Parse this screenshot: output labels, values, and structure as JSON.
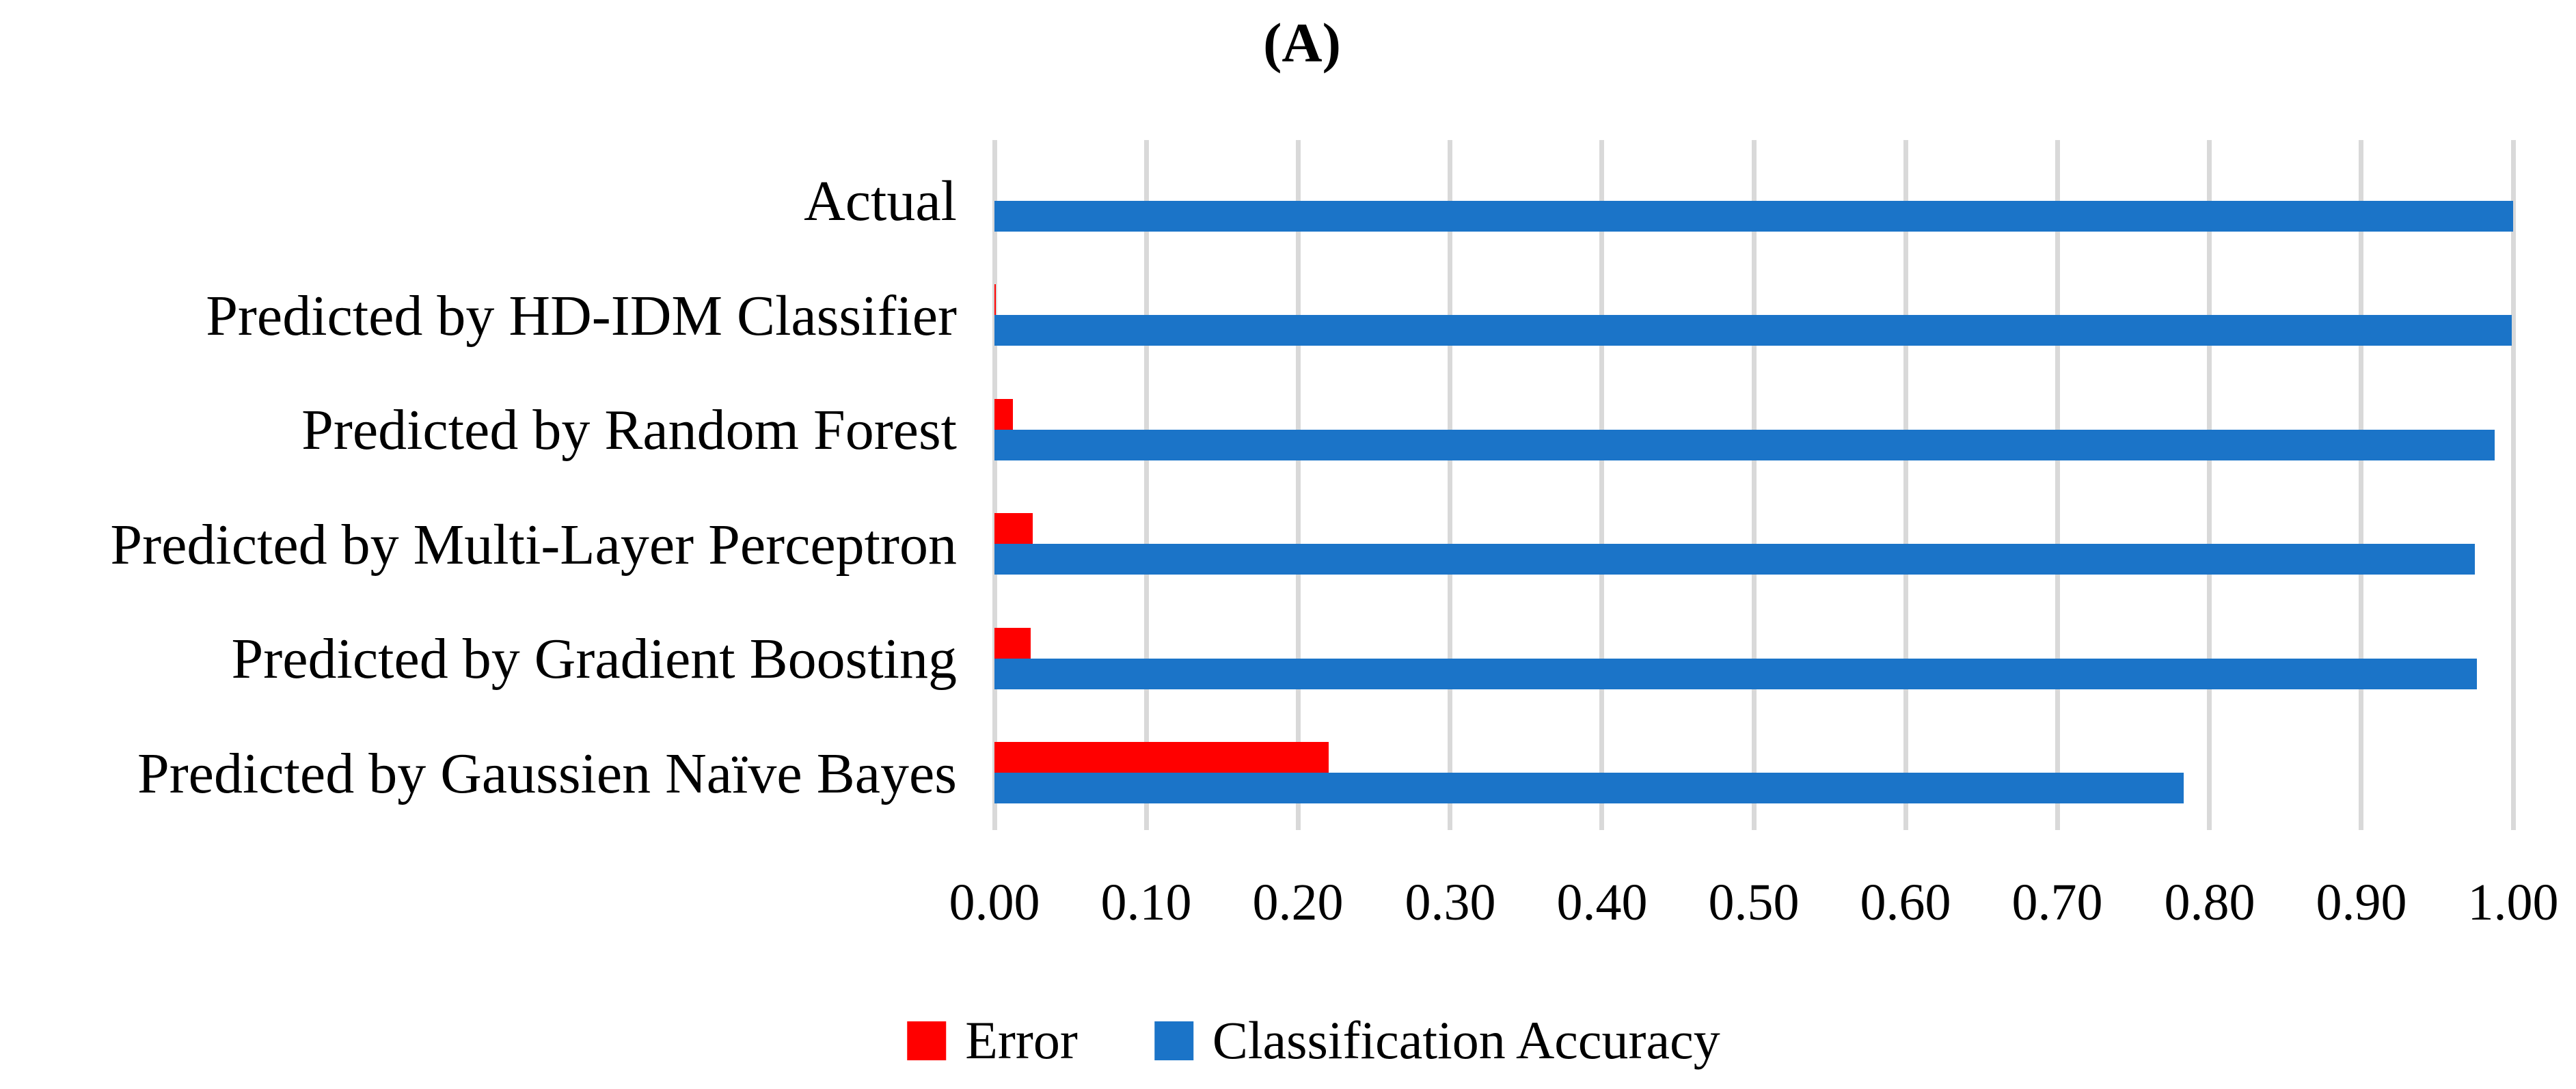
{
  "chart_data": {
    "type": "bar",
    "orientation": "horizontal",
    "title": "(A)",
    "categories": [
      "Actual",
      "Predicted by HD-IDM Classifier",
      "Predicted by Random Forest",
      "Predicted by Multi-Layer Perceptron",
      "Predicted by Gradient Boosting",
      "Predicted by Gaussien Naïve Bayes"
    ],
    "series": [
      {
        "name": "Error",
        "color": "#FF0000",
        "values": [
          0.0,
          0.001,
          0.012,
          0.025,
          0.024,
          0.22
        ]
      },
      {
        "name": "Classification Accuracy",
        "color": "#1B74C8",
        "values": [
          1.0,
          0.999,
          0.988,
          0.975,
          0.976,
          0.783
        ]
      }
    ],
    "x_axis": {
      "min": 0.0,
      "max": 1.0,
      "tick_step": 0.1,
      "tick_labels": [
        "0.00",
        "0.10",
        "0.20",
        "0.30",
        "0.40",
        "0.50",
        "0.60",
        "0.70",
        "0.80",
        "0.90",
        "1.00"
      ]
    },
    "grid": {
      "vertical_gridlines": true,
      "color": "#D9D9D9"
    },
    "legend": {
      "position": "bottom-center"
    },
    "text_color": "#000000",
    "background_color": "#FFFFFF"
  }
}
